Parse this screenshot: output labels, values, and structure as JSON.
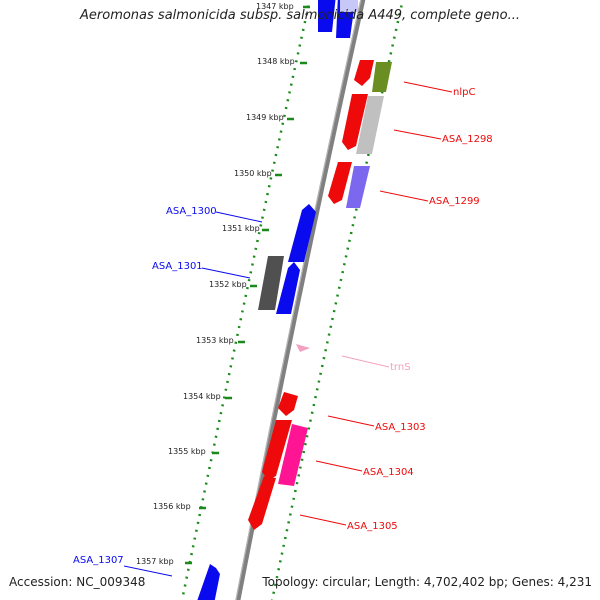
{
  "title": "Aeromonas salmonicida subsp. salmonicida A449, complete geno...",
  "footer": {
    "accession": "Accession: NC_009348",
    "summary": "Topology: circular; Length: 4,702,402 bp; Genes: 4,231"
  },
  "ticks": [
    "1347 kbp",
    "1348 kbp",
    "1349 kbp",
    "1350 kbp",
    "1351 kbp",
    "1352 kbp",
    "1353 kbp",
    "1354 kbp",
    "1355 kbp",
    "1356 kbp",
    "1357 kbp"
  ],
  "labels": {
    "nlpC": "nlpC",
    "asa1298": "ASA_1298",
    "asa1299": "ASA_1299",
    "asa1300": "ASA_1300",
    "asa1301": "ASA_1301",
    "trnS": "trnS",
    "asa1303": "ASA_1303",
    "asa1304": "ASA_1304",
    "asa1305": "ASA_1305",
    "asa1307": "ASA_1307"
  },
  "colors": {
    "forward_cds": "#0a0aee",
    "reverse_cds": "#ee0a0a",
    "rna": "#f4a0c0",
    "cog_green": "#6b8e23",
    "cog_grey": "#c0c0c0",
    "cog_purple": "#7b68ee",
    "cog_dark": "#505050",
    "cog_pink": "#ff1493",
    "tick": "#1a8a1a",
    "backbone": "#808080"
  }
}
